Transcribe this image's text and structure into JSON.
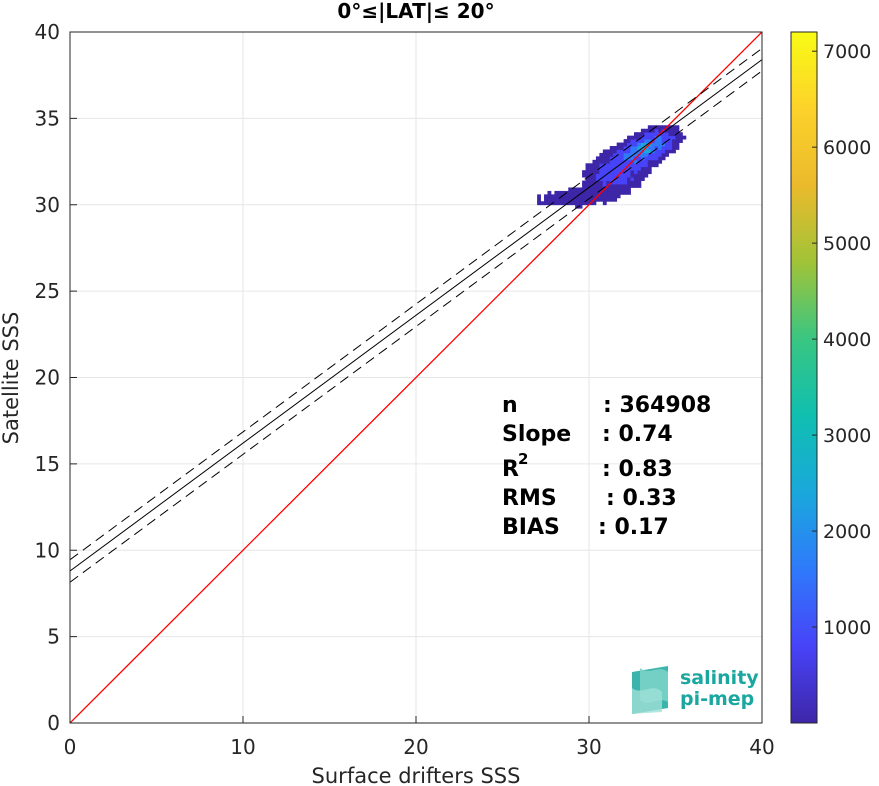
{
  "chart_data": {
    "type": "heatmap",
    "title": "0°≤|LAT|≤ 20°",
    "xlabel": "Surface drifters SSS",
    "ylabel": "Satellite SSS",
    "xlim": [
      0,
      40
    ],
    "ylim": [
      0,
      40
    ],
    "xticks": [
      0,
      10,
      20,
      30,
      40
    ],
    "yticks": [
      0,
      5,
      10,
      15,
      20,
      25,
      30,
      35,
      40
    ],
    "grid": true,
    "colorbar": {
      "range": [
        0,
        7200
      ],
      "ticks": [
        1000,
        2000,
        3000,
        4000,
        5000,
        6000,
        7000
      ],
      "colors": [
        "#3e26a8",
        "#4743f8",
        "#2f7afb",
        "#1aa8dc",
        "#10bfb0",
        "#39c682",
        "#a1c338",
        "#ebba2c",
        "#fcd22a",
        "#f9fb15"
      ]
    },
    "identity_line": {
      "from": [
        0,
        0
      ],
      "to": [
        40,
        40
      ],
      "color": "#ff0000"
    },
    "fit_line": {
      "slope": 0.74,
      "intercept": 8.8,
      "color": "#000000"
    },
    "confidence_band": {
      "offset": 0.65,
      "style": "dashed"
    },
    "stats": {
      "n_label": "n",
      "n_value": ": 364908",
      "slope_label": "Slope",
      "slope_value": ": 0.74",
      "r2_label": "R",
      "r2_sup": "2",
      "r2_value": ": 0.83",
      "rms_label": "RMS",
      "rms_value": ": 0.33",
      "bias_label": "BIAS",
      "bias_value": ": 0.17"
    },
    "density_clusters": [
      {
        "x": 33.2,
        "y": 33.2,
        "sx": 0.9,
        "sy": 0.55,
        "rho": 0.55,
        "weight": 1.0
      },
      {
        "x": 31.5,
        "y": 31.8,
        "sx": 1.0,
        "sy": 0.7,
        "rho": 0.3,
        "weight": 0.35
      },
      {
        "x": 29.0,
        "y": 30.3,
        "sx": 1.6,
        "sy": 0.35,
        "rho": 0.2,
        "weight": 0.12
      }
    ]
  },
  "logo": {
    "line1": "salinity",
    "line2": "pi-mep"
  }
}
